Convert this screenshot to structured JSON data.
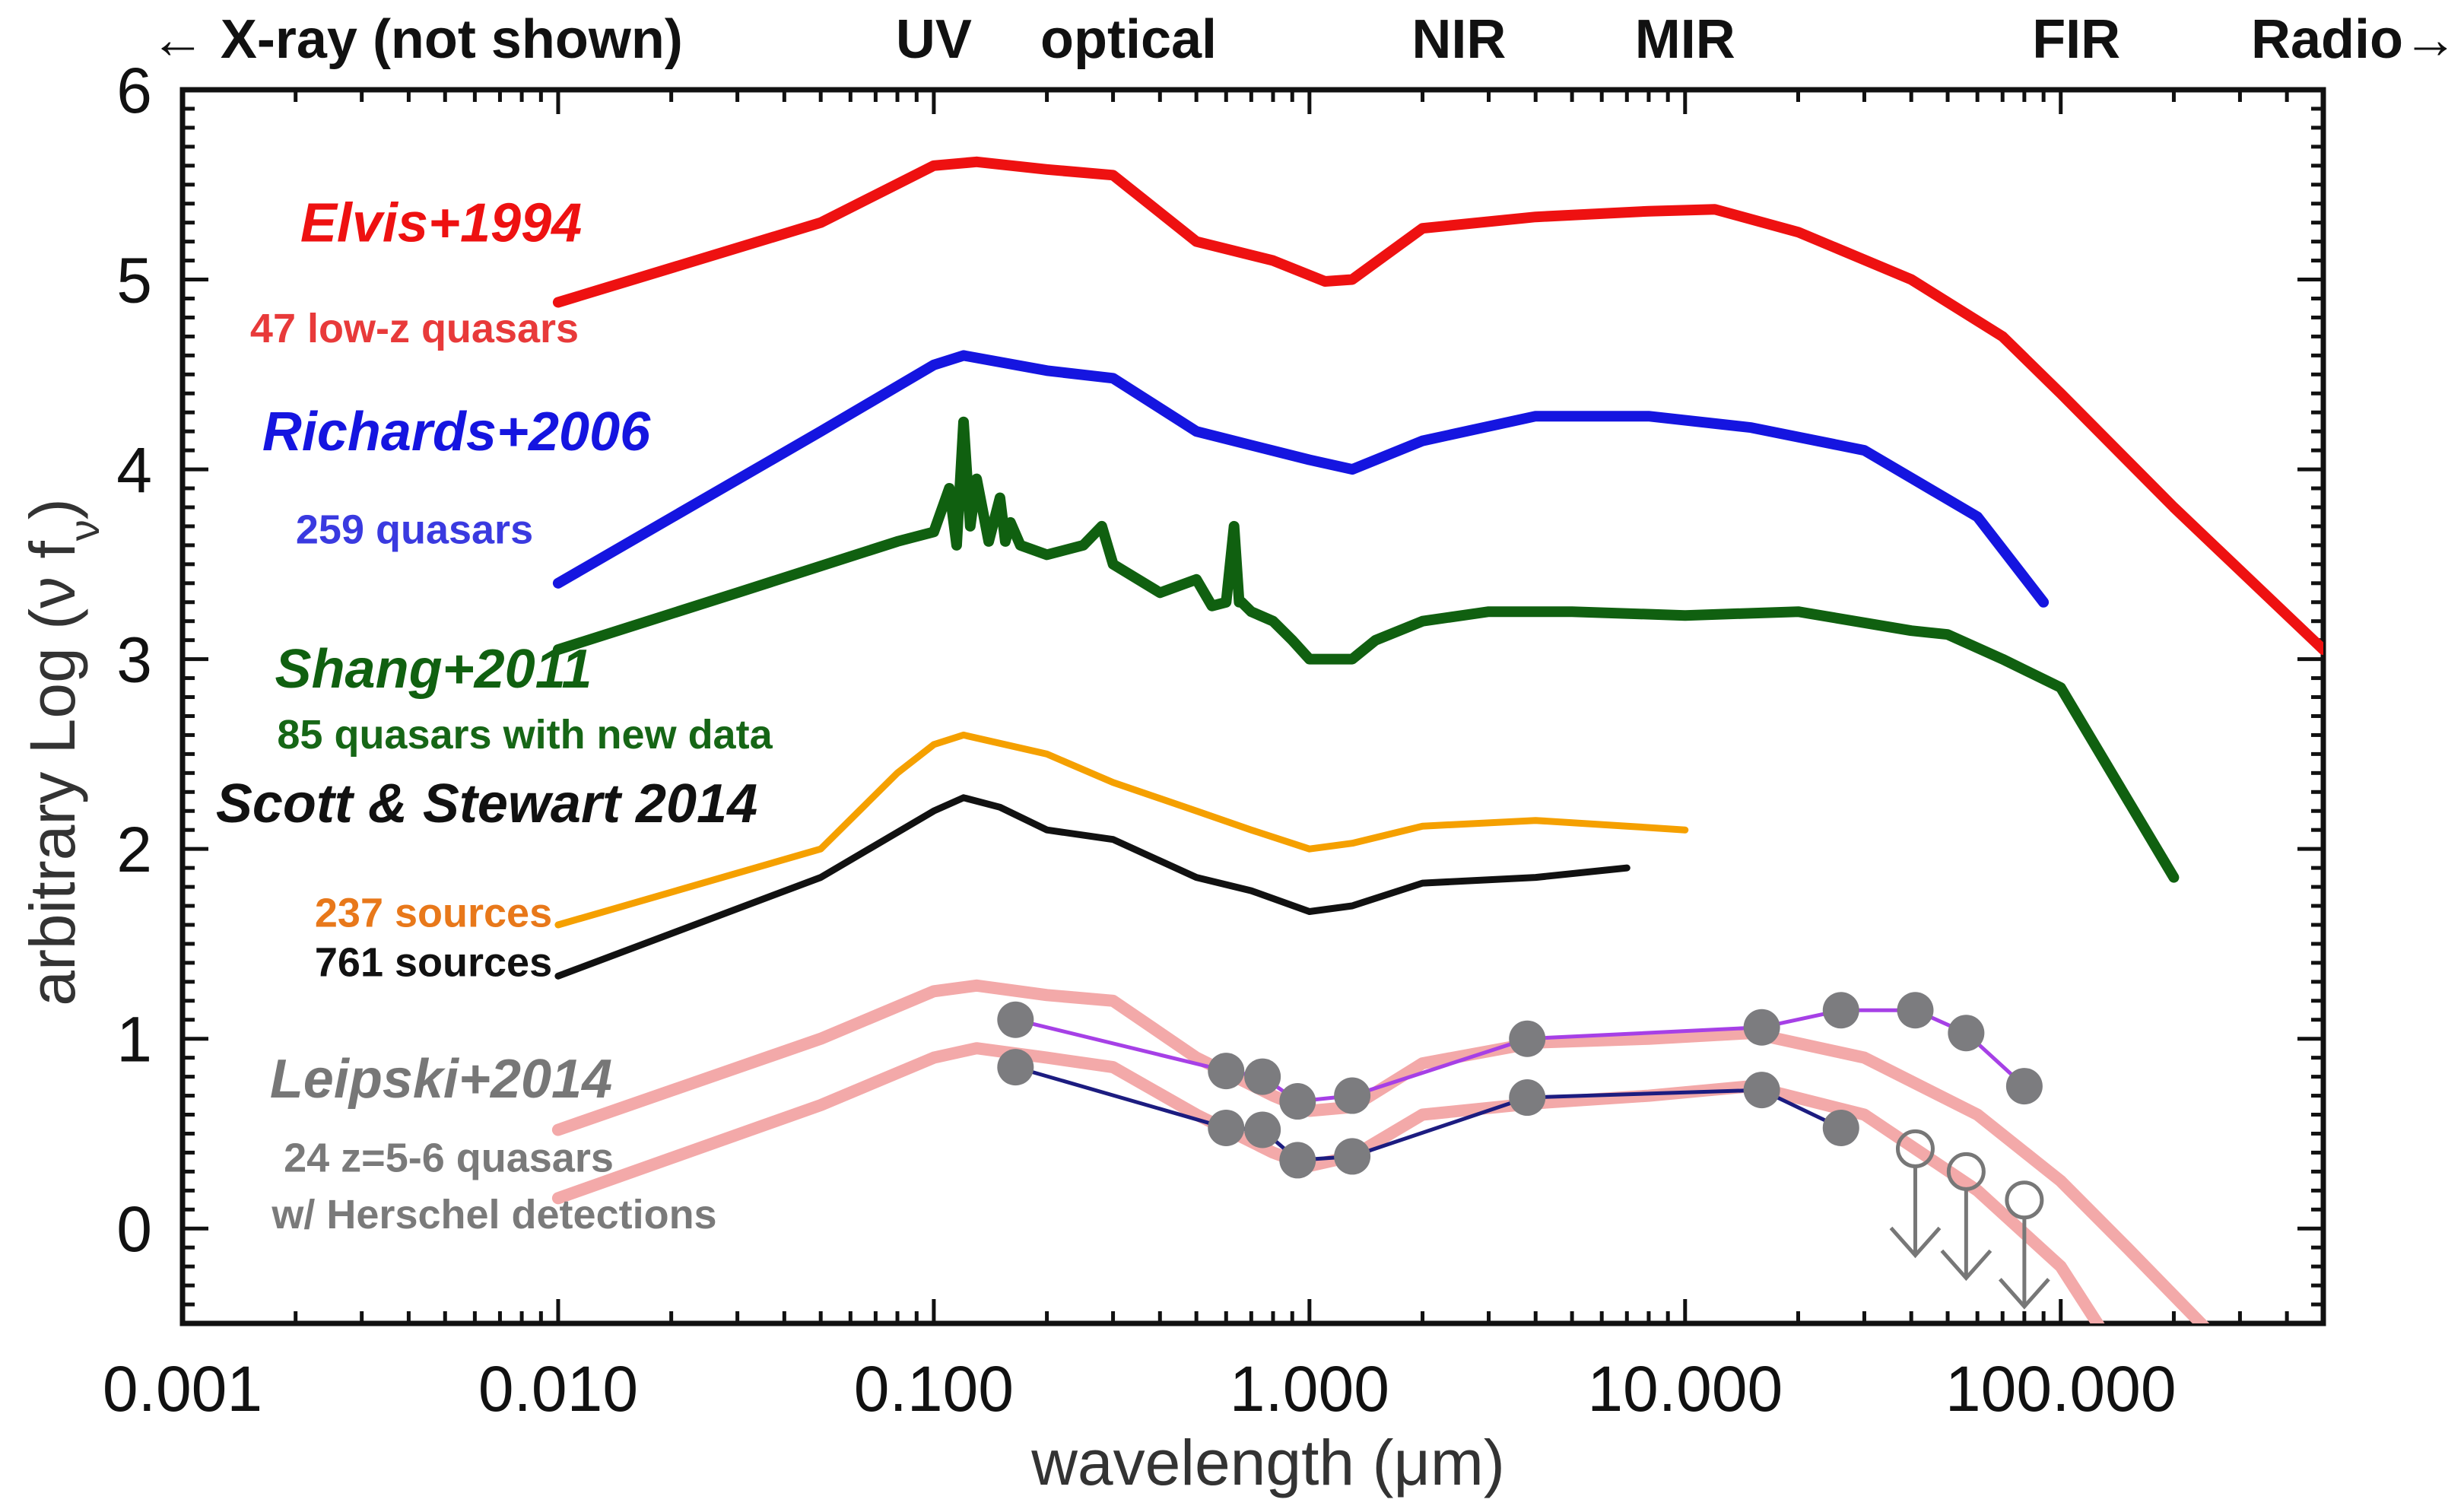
{
  "chart_data": {
    "type": "line",
    "xscale": "log",
    "xlim": [
      0.001,
      500
    ],
    "ylim": [
      -0.5,
      6
    ],
    "xlabel": "wavelength (μm)",
    "ylabel_main": "arbitrary Log (ν f",
    "ylabel_sub": "ν",
    "ylabel_close": ")",
    "xticks": [
      0.001,
      0.01,
      0.1,
      1,
      10,
      100
    ],
    "xtick_labels": [
      "0.001",
      "0.010",
      "0.100",
      "1.000",
      "10.000",
      "100.000"
    ],
    "yticks": [
      0,
      1,
      2,
      3,
      4,
      5,
      6
    ],
    "ytick_labels": [
      "0",
      "1",
      "2",
      "3",
      "4",
      "5",
      "6"
    ],
    "bands": [
      {
        "label": "← X-ray (not shown)",
        "x": 0.0042
      },
      {
        "label": "UV",
        "x": 0.1
      },
      {
        "label": "optical",
        "x": 0.33
      },
      {
        "label": "NIR",
        "x": 2.5
      },
      {
        "label": "MIR",
        "x": 10
      },
      {
        "label": "FIR",
        "x": 110
      },
      {
        "label": "Radio→",
        "x": 400
      }
    ],
    "series": [
      {
        "name": "Elvis+1994",
        "subtitle": "47 low-z quasars",
        "color": "#ee1111",
        "sub_color": "#e83a3a",
        "label_at": [
          0.01,
          5.2
        ],
        "sub_at": [
          0.01,
          4.67
        ],
        "x": [
          0.01,
          0.05,
          0.1,
          0.13,
          0.2,
          0.3,
          0.5,
          0.8,
          1.1,
          1.3,
          2,
          4,
          8,
          12,
          20,
          40,
          70,
          100,
          200,
          500
        ],
        "y": [
          4.88,
          5.3,
          5.6,
          5.62,
          5.58,
          5.55,
          5.2,
          5.1,
          4.99,
          5.0,
          5.27,
          5.33,
          5.36,
          5.37,
          5.25,
          5.0,
          4.7,
          4.4,
          3.8,
          3.05
        ]
      },
      {
        "name": "Richards+2006",
        "subtitle": "259 quasars",
        "color": "#1515e0",
        "sub_color": "#3a3ae0",
        "label_at": [
          0.01,
          4.1
        ],
        "sub_at": [
          0.01,
          3.61
        ],
        "x": [
          0.01,
          0.05,
          0.1,
          0.12,
          0.2,
          0.3,
          0.5,
          1.0,
          1.3,
          2,
          4,
          8,
          15,
          30,
          60,
          90
        ],
        "y": [
          3.4,
          4.2,
          4.55,
          4.6,
          4.52,
          4.48,
          4.2,
          4.05,
          4.0,
          4.15,
          4.28,
          4.28,
          4.22,
          4.1,
          3.75,
          3.3
        ]
      },
      {
        "name": "Shang+2011",
        "subtitle": "85 quasars with new data",
        "color": "#106010",
        "sub_color": "#166616",
        "label_at": [
          0.01,
          2.85
        ],
        "sub_at": [
          0.01,
          2.53
        ],
        "x": [
          0.01,
          0.03,
          0.08,
          0.1,
          0.11,
          0.115,
          0.12,
          0.125,
          0.13,
          0.14,
          0.15,
          0.155,
          0.16,
          0.17,
          0.2,
          0.25,
          0.28,
          0.3,
          0.4,
          0.5,
          0.55,
          0.6,
          0.63,
          0.65,
          0.66,
          0.7,
          0.8,
          0.9,
          1.0,
          1.3,
          1.5,
          2,
          3,
          5,
          10,
          20,
          40,
          50,
          70,
          100,
          200
        ],
        "y": [
          3.05,
          3.35,
          3.62,
          3.67,
          3.9,
          3.6,
          4.25,
          3.7,
          3.95,
          3.62,
          3.85,
          3.62,
          3.72,
          3.6,
          3.55,
          3.6,
          3.7,
          3.5,
          3.35,
          3.42,
          3.28,
          3.3,
          3.7,
          3.3,
          3.3,
          3.25,
          3.2,
          3.1,
          3.0,
          3.0,
          3.1,
          3.2,
          3.25,
          3.25,
          3.23,
          3.25,
          3.15,
          3.13,
          3.0,
          2.85,
          1.85
        ]
      },
      {
        "name": "Scott & Stewart 2014",
        "subtitle": "",
        "color": "#111111",
        "sub_color": "#111111",
        "label_at": [
          0.01,
          2.14
        ],
        "sub_at": [
          0.01,
          2.14
        ],
        "x": [
          0.01,
          0.05,
          0.1,
          0.12,
          0.15,
          0.2,
          0.3,
          0.5,
          0.7,
          1.0,
          1.3,
          2,
          4,
          7
        ],
        "y": [
          1.33,
          1.85,
          2.2,
          2.27,
          2.22,
          2.1,
          2.05,
          1.85,
          1.78,
          1.67,
          1.7,
          1.82,
          1.85,
          1.9
        ]
      },
      {
        "name": "237 sources",
        "subtitle": "",
        "color": "#f5a000",
        "sub_color": "#e8781a",
        "label_at": [
          0.01,
          1.59
        ],
        "sub_at": [
          0.01,
          1.59
        ],
        "x": [
          0.01,
          0.05,
          0.08,
          0.1,
          0.12,
          0.2,
          0.3,
          0.5,
          0.7,
          1.0,
          1.3,
          2,
          4,
          7,
          10
        ],
        "y": [
          1.6,
          2.0,
          2.4,
          2.55,
          2.6,
          2.5,
          2.35,
          2.2,
          2.1,
          2.0,
          2.03,
          2.12,
          2.15,
          2.12,
          2.1
        ]
      },
      {
        "name": "761 sources",
        "subtitle": "",
        "color": "#111111",
        "sub_color": "#111111",
        "label_at": [
          0.01,
          1.33
        ],
        "sub_at": [
          0.01,
          1.33
        ],
        "x": [],
        "y": []
      },
      {
        "name": "Leipski+2014",
        "subtitle": "24 z=5-6 quasars",
        "subtitle2": "w/ Herschel detections",
        "color": "#777777",
        "sub_color": "#7a7a7a",
        "label_at": [
          0.01,
          0.69
        ],
        "sub_at": [
          0.01,
          0.3
        ],
        "sub2_at": [
          0.01,
          0.0
        ],
        "x": [],
        "y": []
      },
      {
        "name": "Leipski template (upper)",
        "color": "#f3a9a9",
        "x": [
          0.01,
          0.05,
          0.1,
          0.13,
          0.2,
          0.3,
          0.5,
          0.8,
          1.0,
          1.3,
          2,
          4,
          8,
          15,
          30,
          60,
          100,
          150,
          250
        ],
        "y": [
          0.52,
          1.0,
          1.25,
          1.28,
          1.23,
          1.2,
          0.9,
          0.7,
          0.62,
          0.64,
          0.87,
          0.98,
          1.0,
          1.03,
          0.9,
          0.6,
          0.25,
          -0.1,
          -0.55
        ]
      },
      {
        "name": "Leipski template (lower)",
        "color": "#f3a9a9",
        "x": [
          0.01,
          0.05,
          0.1,
          0.13,
          0.2,
          0.3,
          0.5,
          0.8,
          1.0,
          1.3,
          2,
          4,
          8,
          15,
          30,
          60,
          100,
          130
        ],
        "y": [
          0.16,
          0.65,
          0.9,
          0.95,
          0.9,
          0.85,
          0.6,
          0.4,
          0.33,
          0.38,
          0.6,
          0.66,
          0.7,
          0.75,
          0.6,
          0.2,
          -0.2,
          -0.55
        ]
      },
      {
        "name": "Leipski photometry (upper)",
        "color": "#a640e6",
        "markers": true,
        "x": [
          0.165,
          0.6,
          0.75,
          0.93,
          1.3,
          3.8,
          16,
          26,
          41,
          56,
          80
        ],
        "y": [
          1.1,
          0.83,
          0.8,
          0.67,
          0.7,
          1.0,
          1.06,
          1.15,
          1.15,
          1.03,
          0.75
        ]
      },
      {
        "name": "Leipski photometry (lower)",
        "color": "#1c1c80",
        "markers": true,
        "x": [
          0.165,
          0.6,
          0.75,
          0.93,
          1.3,
          3.8,
          16,
          26
        ],
        "y": [
          0.85,
          0.53,
          0.52,
          0.36,
          0.38,
          0.69,
          0.73,
          0.53
        ]
      },
      {
        "name": "Leipski upper limits",
        "color": "#777777",
        "upper_limits": true,
        "x": [
          41,
          56,
          80
        ],
        "y": [
          0.42,
          0.3,
          0.15
        ]
      }
    ]
  }
}
